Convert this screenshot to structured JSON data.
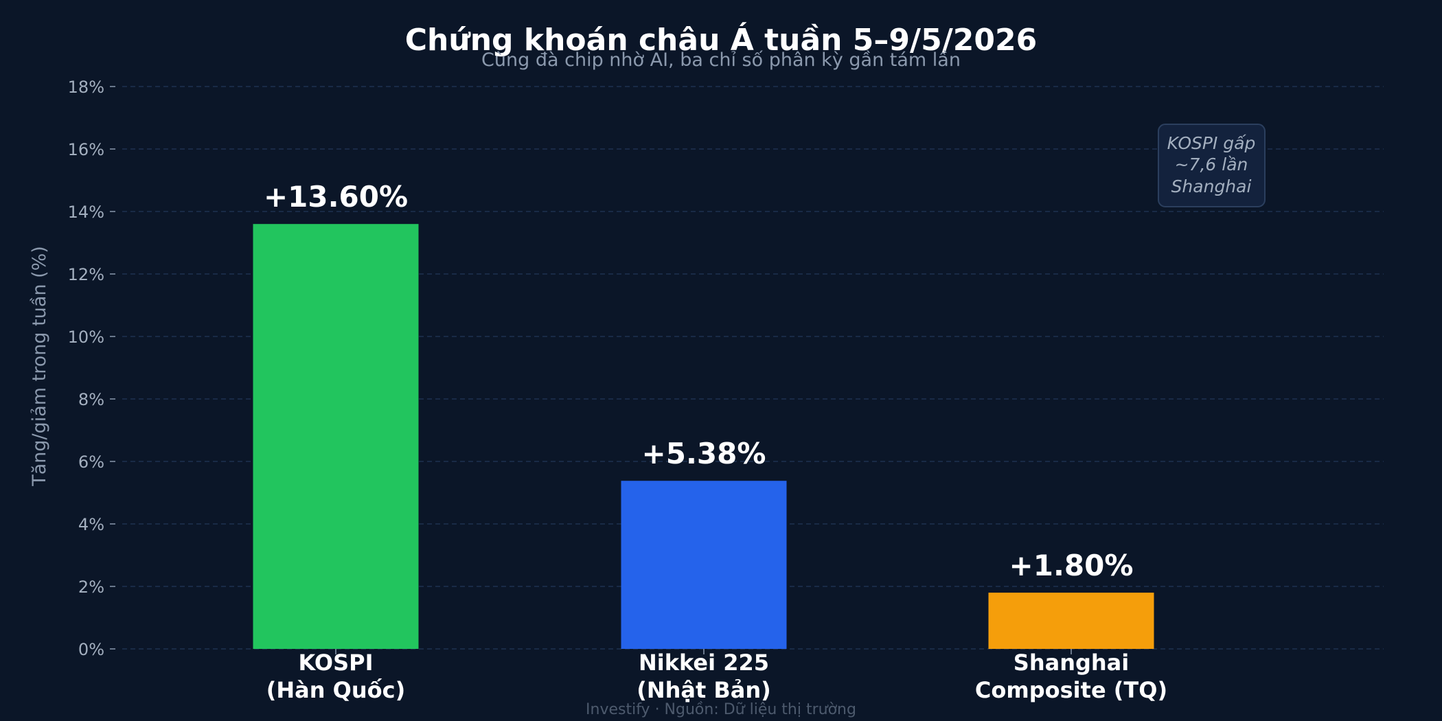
{
  "chart_data": {
    "type": "bar",
    "title": "Chứng khoán châu Á tuần 5–9/5/2026",
    "subtitle": "Cùng đà chip nhờ AI, ba chỉ số phân kỳ gần tám lần",
    "ylabel": "Tăng/giảm trong tuần (%)",
    "xlabel": "",
    "ylim": [
      0,
      18
    ],
    "yticks": [
      0,
      2,
      4,
      6,
      8,
      10,
      12,
      14,
      16,
      18
    ],
    "ytick_labels": [
      "0%",
      "2%",
      "4%",
      "6%",
      "8%",
      "10%",
      "12%",
      "14%",
      "16%",
      "18%"
    ],
    "grid": "horizontal dashed",
    "categories": [
      [
        "KOSPI",
        "(Hàn Quốc)"
      ],
      [
        "Nikkei 225",
        "(Nhật Bản)"
      ],
      [
        "Shanghai",
        "Composite (TQ)"
      ]
    ],
    "values": [
      13.6,
      5.38,
      1.8
    ],
    "data_labels": [
      "+13.60%",
      "+5.38%",
      "+1.80%"
    ],
    "colors": [
      "#22c55e",
      "#2563eb",
      "#f59e0b"
    ],
    "annotation": [
      "KOSPI gấp",
      "~7,6 lần",
      "Shanghai"
    ],
    "footer": "Investify · Nguồn: Dữ liệu thị trường"
  },
  "theme": {
    "background": "#0b1628",
    "grid": "#1e3150",
    "text": "#ffffff",
    "muted": "#8b99ad"
  }
}
